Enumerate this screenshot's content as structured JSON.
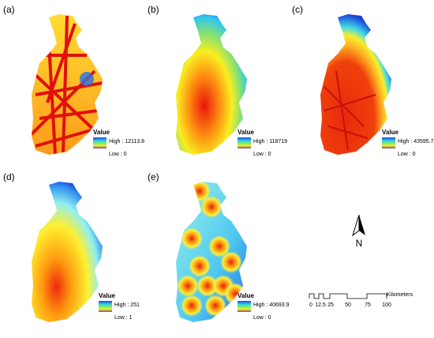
{
  "panels": [
    {
      "label": "(a)",
      "legend": {
        "title": "Value",
        "high": "High : 12113.8",
        "low": "Low : 0"
      }
    },
    {
      "label": "(b)",
      "legend": {
        "title": "Value",
        "high": "High : 118719",
        "low": "Low : 0"
      }
    },
    {
      "label": "(c)",
      "legend": {
        "title": "Value",
        "high": "High : 43595.7",
        "low": "Low : 0"
      }
    },
    {
      "label": "(d)",
      "legend": {
        "title": "Value",
        "high": "High : 251",
        "low": "Low : 1"
      }
    },
    {
      "label": "(e)",
      "legend": {
        "title": "Value",
        "high": "High : 40693.9",
        "low": "Low : 0"
      }
    }
  ],
  "north_arrow": {
    "label": "N"
  },
  "scale_bar": {
    "ticks": [
      "0",
      "12.5",
      "25",
      "50",
      "75",
      "100"
    ],
    "unit": "Kilometers"
  }
}
